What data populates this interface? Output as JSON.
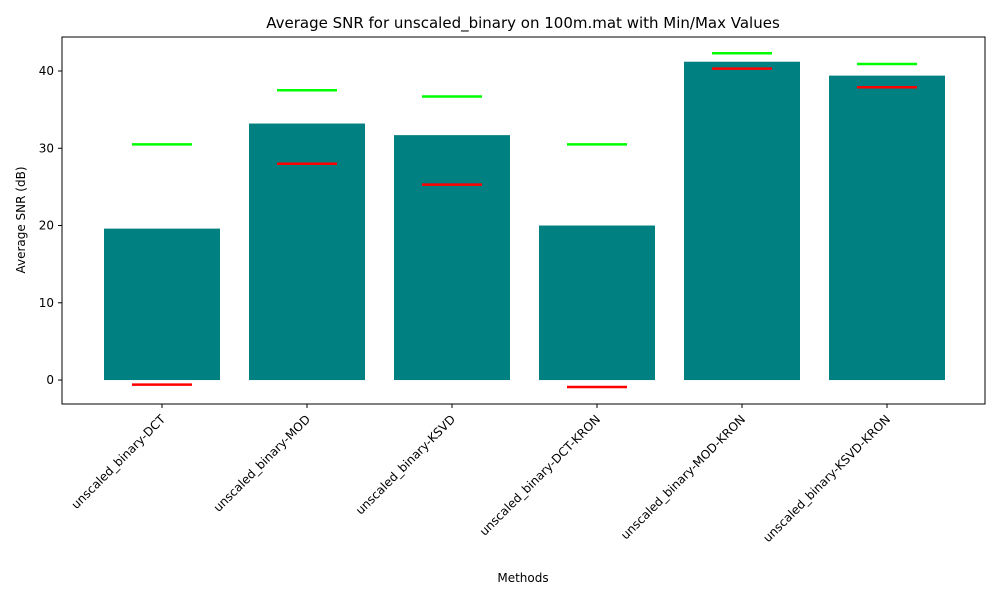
{
  "chart_data": {
    "type": "bar",
    "title": "Average SNR for unscaled_binary on 100m.mat with Min/Max Values",
    "xlabel": "Methods",
    "ylabel": "Average SNR (dB)",
    "ylim": [
      -3.1,
      44.4
    ],
    "yticks": [
      0,
      10,
      20,
      30,
      40
    ],
    "grid": false,
    "categories": [
      "unscaled_binary-DCT",
      "unscaled_binary-MOD",
      "unscaled_binary-KSVD",
      "unscaled_binary-DCT-KRON",
      "unscaled_binary-MOD-KRON",
      "unscaled_binary-KSVD-KRON"
    ],
    "values": [
      19.6,
      33.2,
      31.7,
      20.0,
      41.2,
      39.4
    ],
    "min_values": [
      -0.6,
      28.0,
      25.3,
      -0.9,
      40.3,
      37.9
    ],
    "max_values": [
      30.5,
      37.5,
      36.7,
      30.5,
      42.3,
      40.9
    ],
    "colors": {
      "bar": "#008080",
      "min_line": "#ff0000",
      "max_line": "#00ff00"
    }
  }
}
